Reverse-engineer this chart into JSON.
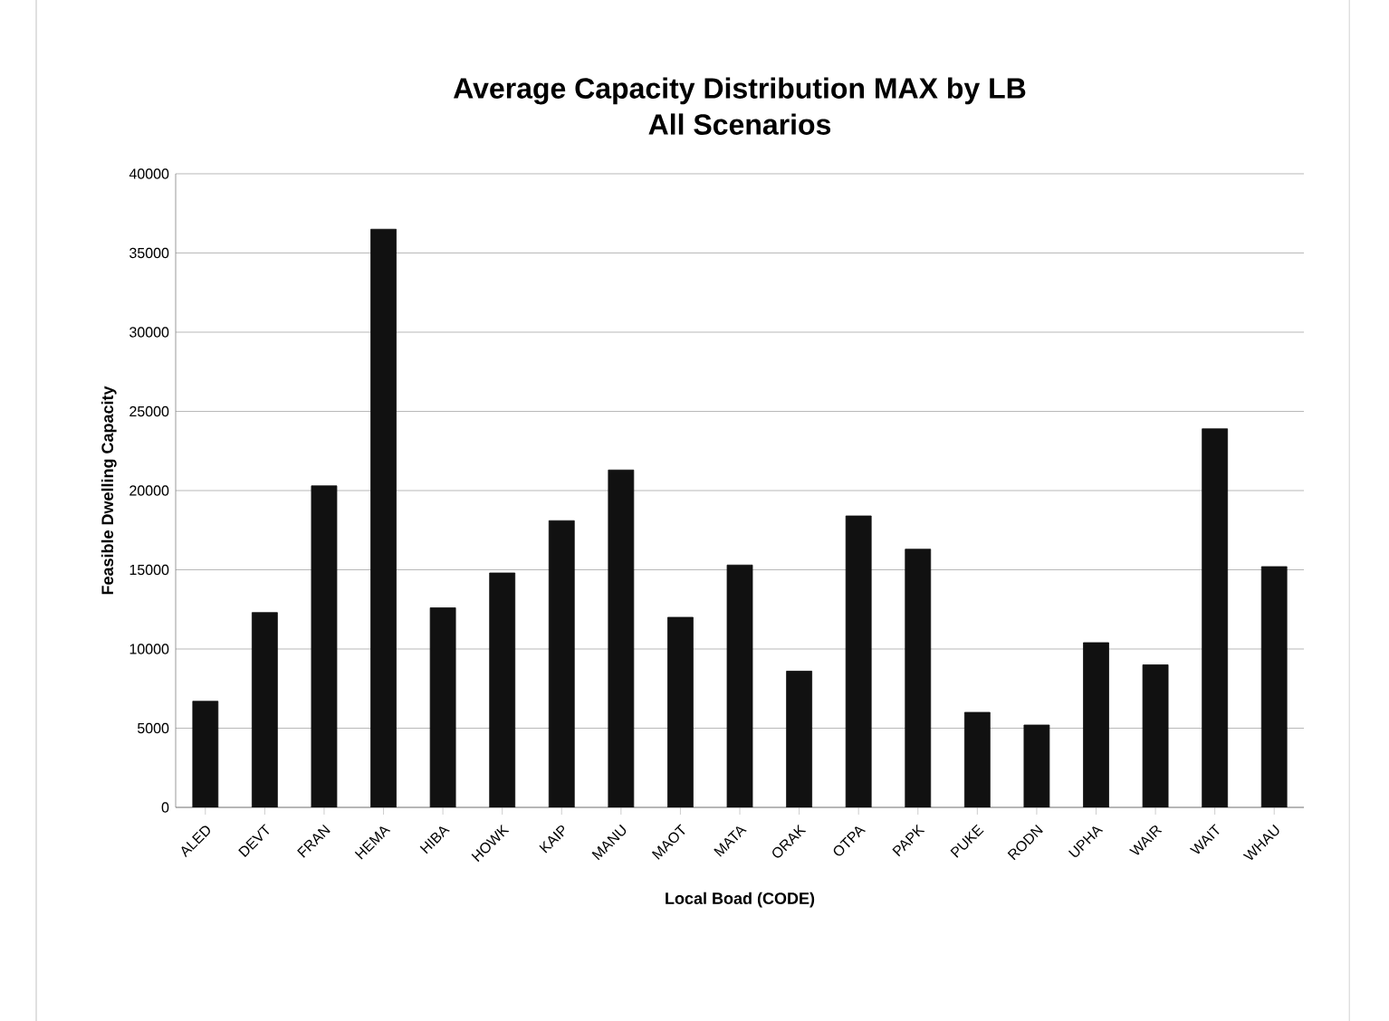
{
  "chart_data": {
    "type": "bar",
    "title": "Average Capacity Distribution MAX by LB",
    "subtitle": "All Scenarios",
    "xlabel": "Local Boad (CODE)",
    "ylabel": "Feasible Dwelling Capacity",
    "categories": [
      "ALED",
      "DEVT",
      "FRAN",
      "HEMA",
      "HIBA",
      "HOWK",
      "KAIP",
      "MANU",
      "MAOT",
      "MATA",
      "ORAK",
      "OTPA",
      "PAPK",
      "PUKE",
      "RODN",
      "UPHA",
      "WAIR",
      "WAIT",
      "WHAU"
    ],
    "values": [
      6700,
      12300,
      20300,
      36500,
      12600,
      14800,
      18100,
      21300,
      12000,
      15300,
      8600,
      18400,
      16300,
      6000,
      5200,
      10400,
      9000,
      23900,
      15200
    ],
    "color": "#111111",
    "ylim": [
      0,
      40000
    ],
    "yticks": [
      0,
      5000,
      10000,
      15000,
      20000,
      25000,
      30000,
      35000,
      40000
    ],
    "grid": "y"
  }
}
